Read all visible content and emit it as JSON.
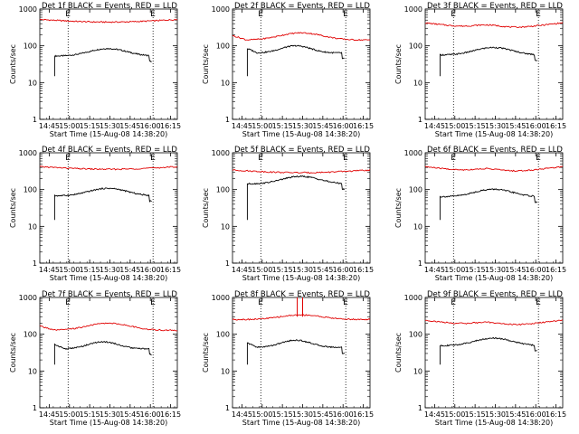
{
  "colors": {
    "events": "#000000",
    "lld": "#e00000",
    "axis": "#000000"
  },
  "chart_data": [
    {
      "type": "line",
      "title": "Det 1f BLACK = Events, RED = LLD",
      "xlabel": "Start Time (15-Aug-08 14:38:20)",
      "ylabel": "Counts/sec",
      "xticks": [
        "14:45",
        "15:00",
        "15:15",
        "15:30",
        "15:45",
        "16:00",
        "16:15"
      ],
      "yticks": [
        "1",
        "10",
        "100",
        "1000"
      ],
      "ylim": [
        1,
        1000
      ],
      "yscale": "log",
      "markers": [
        "E",
        "E"
      ],
      "series": [
        {
          "key": "events",
          "level": 70,
          "start": 1.0,
          "shape": "hump"
        },
        {
          "key": "lld",
          "level": 520,
          "start": null,
          "shape": "flat"
        }
      ]
    },
    {
      "type": "line",
      "title": "Det 2f BLACK = Events, RED = LLD",
      "xlabel": "Start Time (15-Aug-08 14:38:20)",
      "ylabel": "Counts/sec",
      "xticks": [
        "14:45",
        "15:00",
        "15:15",
        "15:30",
        "15:45",
        "16:00",
        "16:15"
      ],
      "yticks": [
        "1",
        "10",
        "100",
        "1000"
      ],
      "ylim": [
        1,
        1000
      ],
      "yscale": "log",
      "markers": [
        "E",
        "E"
      ],
      "series": [
        {
          "key": "events",
          "level": 80,
          "start": 1.0,
          "shape": "wave"
        },
        {
          "key": "lld",
          "level": 180,
          "start": null,
          "shape": "wave"
        }
      ]
    },
    {
      "type": "line",
      "title": "Det 3f BLACK = Events, RED = LLD",
      "xlabel": "Start Time (15-Aug-08 14:38:20)",
      "ylabel": "Counts/sec",
      "xticks": [
        "14:45",
        "15:00",
        "15:15",
        "15:30",
        "15:45",
        "16:00",
        "16:15"
      ],
      "yticks": [
        "1",
        "10",
        "100",
        "1000"
      ],
      "ylim": [
        1,
        1000
      ],
      "yscale": "log",
      "markers": [
        "E",
        "E"
      ],
      "series": [
        {
          "key": "events",
          "level": 75,
          "start": 1.0,
          "shape": "hump"
        },
        {
          "key": "lld",
          "level": 350,
          "start": null,
          "shape": "dip"
        }
      ]
    },
    {
      "type": "line",
      "title": "Det 4f BLACK = Events, RED = LLD",
      "xlabel": "Start Time (15-Aug-08 14:38:20)",
      "ylabel": "Counts/sec",
      "xticks": [
        "14:45",
        "15:00",
        "15:15",
        "15:30",
        "15:45",
        "16:00",
        "16:15"
      ],
      "yticks": [
        "1",
        "10",
        "100",
        "1000"
      ],
      "ylim": [
        1,
        1000
      ],
      "yscale": "log",
      "markers": [
        "E",
        "E"
      ],
      "series": [
        {
          "key": "events",
          "level": 90,
          "start": 1.0,
          "shape": "hump"
        },
        {
          "key": "lld",
          "level": 420,
          "start": null,
          "shape": "flat"
        }
      ]
    },
    {
      "type": "line",
      "title": "Det 5f BLACK = Events, RED = LLD",
      "xlabel": "Start Time (15-Aug-08 14:38:20)",
      "ylabel": "Counts/sec",
      "xticks": [
        "14:45",
        "15:00",
        "15:15",
        "15:30",
        "15:45",
        "16:00",
        "16:15"
      ],
      "yticks": [
        "1",
        "10",
        "100",
        "1000"
      ],
      "ylim": [
        1,
        1000
      ],
      "yscale": "log",
      "markers": [
        "E",
        "E"
      ],
      "series": [
        {
          "key": "events",
          "level": 190,
          "start": 1.0,
          "shape": "hump"
        },
        {
          "key": "lld",
          "level": 340,
          "start": null,
          "shape": "flat"
        }
      ]
    },
    {
      "type": "line",
      "title": "Det 6f BLACK = Events, RED = LLD",
      "xlabel": "Start Time (15-Aug-08 14:38:20)",
      "ylabel": "Counts/sec",
      "xticks": [
        "14:45",
        "15:00",
        "15:15",
        "15:30",
        "15:45",
        "16:00",
        "16:15"
      ],
      "yticks": [
        "1",
        "10",
        "100",
        "1000"
      ],
      "ylim": [
        1,
        1000
      ],
      "yscale": "log",
      "markers": [
        "E",
        "E"
      ],
      "series": [
        {
          "key": "events",
          "level": 85,
          "start": 1.0,
          "shape": "hump"
        },
        {
          "key": "lld",
          "level": 350,
          "start": null,
          "shape": "dip"
        }
      ]
    },
    {
      "type": "line",
      "title": "Det 7f BLACK = Events, RED = LLD",
      "xlabel": "Start Time (15-Aug-08 14:38:20)",
      "ylabel": "Counts/sec",
      "xticks": [
        "14:45",
        "15:00",
        "15:15",
        "15:30",
        "15:45",
        "16:00",
        "16:15"
      ],
      "yticks": [
        "1",
        "10",
        "100",
        "1000"
      ],
      "ylim": [
        1,
        1000
      ],
      "yscale": "log",
      "markers": [
        "E",
        "E"
      ],
      "series": [
        {
          "key": "events",
          "level": 50,
          "start": 1.0,
          "shape": "wave"
        },
        {
          "key": "lld",
          "level": 160,
          "start": null,
          "shape": "wave"
        }
      ]
    },
    {
      "type": "line",
      "title": "Det 8f BLACK = Events, RED = LLD",
      "xlabel": "Start Time (15-Aug-08 14:38:20)",
      "ylabel": "Counts/sec",
      "xticks": [
        "14:45",
        "15:00",
        "15:15",
        "15:30",
        "15:45",
        "16:00",
        "16:15"
      ],
      "yticks": [
        "1",
        "10",
        "100",
        "1000"
      ],
      "ylim": [
        1,
        1000
      ],
      "yscale": "log",
      "markers": [
        "E",
        "E"
      ],
      "series": [
        {
          "key": "events",
          "level": 55,
          "start": 1.0,
          "shape": "wave"
        },
        {
          "key": "lld",
          "level": 280,
          "start": null,
          "shape": "spike"
        }
      ]
    },
    {
      "type": "line",
      "title": "Det 9f BLACK = Events, RED = LLD",
      "xlabel": "Start Time (15-Aug-08 14:38:20)",
      "ylabel": "Counts/sec",
      "xticks": [
        "14:45",
        "15:00",
        "15:15",
        "15:30",
        "15:45",
        "16:00",
        "16:15"
      ],
      "yticks": [
        "1",
        "10",
        "100",
        "1000"
      ],
      "ylim": [
        1,
        1000
      ],
      "yscale": "log",
      "markers": [
        "E",
        "E"
      ],
      "series": [
        {
          "key": "events",
          "level": 65,
          "start": 1.0,
          "shape": "hump"
        },
        {
          "key": "lld",
          "level": 200,
          "start": null,
          "shape": "dip"
        }
      ]
    }
  ]
}
